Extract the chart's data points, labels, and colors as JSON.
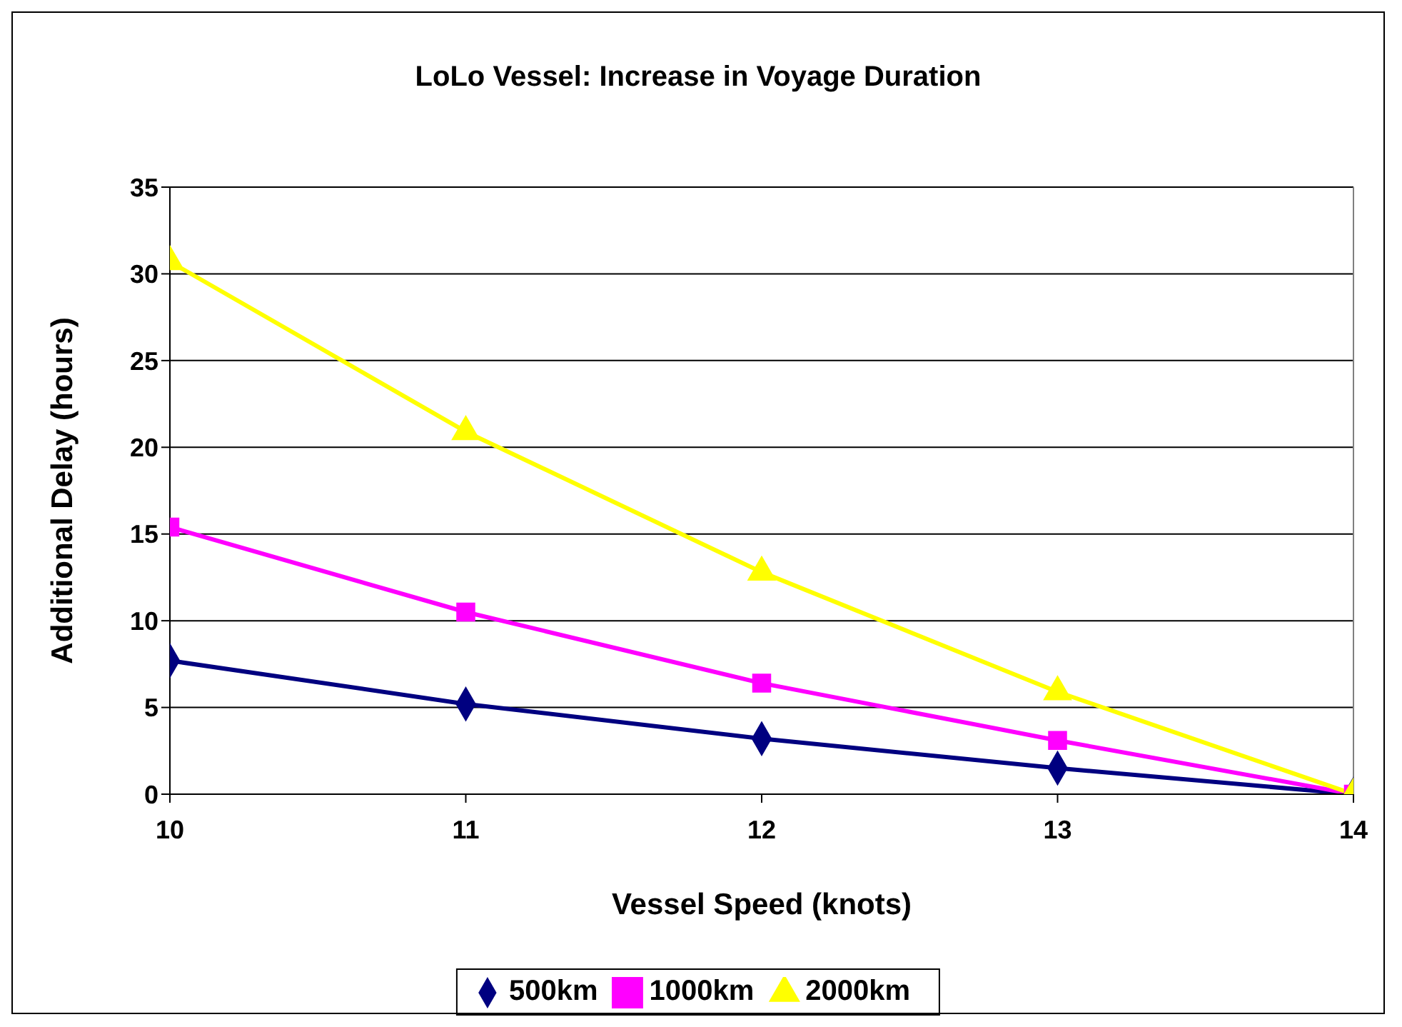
{
  "chart_data": {
    "type": "line",
    "title": "LoLo Vessel: Increase in Voyage Duration",
    "xlabel": "Vessel Speed (knots)",
    "ylabel": "Additional Delay (hours)",
    "x": [
      10,
      11,
      12,
      13,
      14
    ],
    "series": [
      {
        "name": "500km",
        "color": "#000080",
        "marker": "diamond",
        "values": [
          7.7,
          5.2,
          3.2,
          1.5,
          0
        ]
      },
      {
        "name": "1000km",
        "color": "#ff00ff",
        "marker": "square",
        "values": [
          15.4,
          10.5,
          6.4,
          3.1,
          0
        ]
      },
      {
        "name": "2000km",
        "color": "#ffff00",
        "marker": "triangle",
        "values": [
          30.7,
          20.9,
          12.8,
          5.9,
          0
        ]
      }
    ],
    "xlim": [
      10,
      14
    ],
    "xticks": [
      10,
      11,
      12,
      13,
      14
    ],
    "ylim": [
      0,
      35
    ],
    "yticks": [
      0,
      5,
      10,
      15,
      20,
      25,
      30,
      35
    ],
    "grid": "y",
    "legend": "bottom",
    "line_style": "solid"
  }
}
